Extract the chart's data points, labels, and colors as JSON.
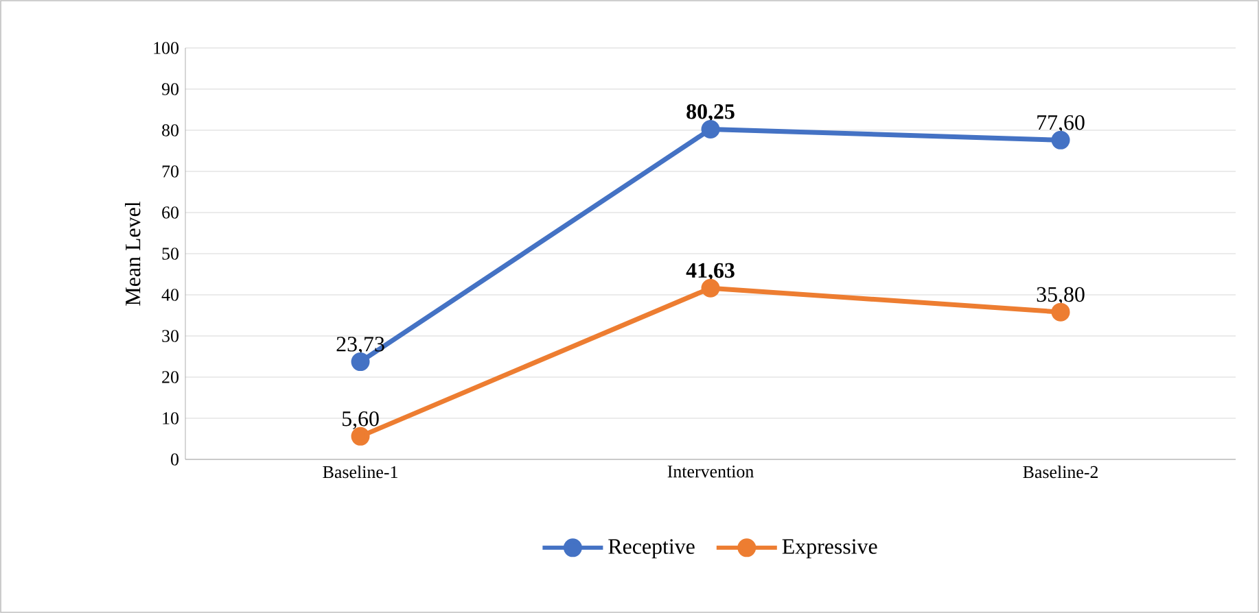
{
  "chart_data": {
    "type": "line",
    "ylabel": "Mean Level",
    "categories": [
      "Baseline-1",
      "Intervention",
      "Baseline-2"
    ],
    "series": [
      {
        "name": "Receptive",
        "color": "#4472c4",
        "values": [
          23.73,
          80.25,
          77.6
        ],
        "value_labels": [
          "23,73",
          "**80,25**",
          "77,60"
        ]
      },
      {
        "name": "Expressive",
        "color": "#ed7d31",
        "values": [
          5.6,
          41.63,
          35.8
        ],
        "value_labels": [
          "5,60",
          "**41,63**",
          "35,80"
        ]
      }
    ],
    "ylim": [
      0,
      100
    ],
    "yticks": [
      0,
      10,
      20,
      30,
      40,
      50,
      60,
      70,
      80,
      90,
      100
    ],
    "grid": "y",
    "legend": "bottom",
    "marker": "circle",
    "line_style": "solid"
  }
}
